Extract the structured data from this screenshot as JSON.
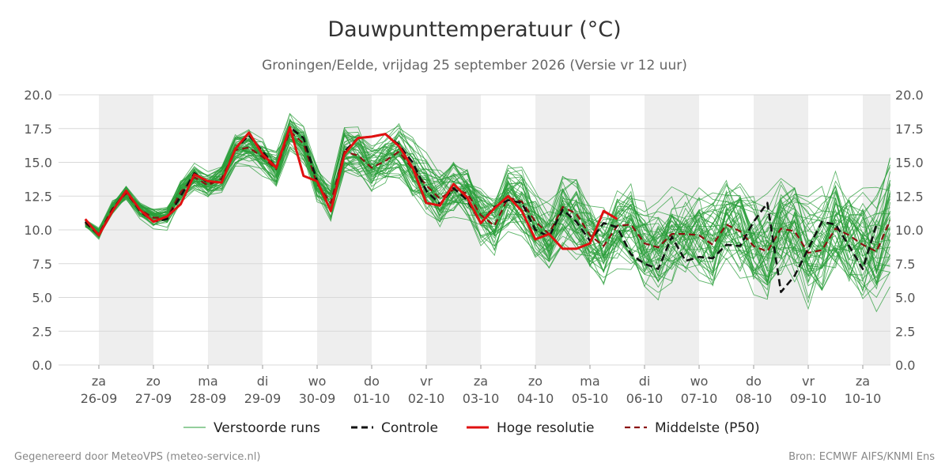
{
  "chart_data": {
    "type": "line",
    "title": "Dauwpunttemperatuur (°C)",
    "subtitle": "Groningen/Eelde, vrijdag 25 september 2026 (Versie vr 12 uur)",
    "ylim": [
      0,
      20
    ],
    "y_ticks": [
      "0.0",
      "2.5",
      "5.0",
      "7.5",
      "10.0",
      "12.5",
      "15.0",
      "17.5",
      "20.0"
    ],
    "x_range_days": [
      "25-09 18:00",
      "10-10 12:00"
    ],
    "x_ticks": [
      {
        "day": "za",
        "date": "26-09"
      },
      {
        "day": "zo",
        "date": "27-09"
      },
      {
        "day": "ma",
        "date": "28-09"
      },
      {
        "day": "di",
        "date": "29-09"
      },
      {
        "day": "wo",
        "date": "30-09"
      },
      {
        "day": "do",
        "date": "01-10"
      },
      {
        "day": "vr",
        "date": "02-10"
      },
      {
        "day": "za",
        "date": "03-10"
      },
      {
        "day": "zo",
        "date": "04-10"
      },
      {
        "day": "ma",
        "date": "05-10"
      },
      {
        "day": "di",
        "date": "06-10"
      },
      {
        "day": "wo",
        "date": "07-10"
      },
      {
        "day": "do",
        "date": "08-10"
      },
      {
        "day": "vr",
        "date": "09-10"
      },
      {
        "day": "za",
        "date": "10-10"
      }
    ],
    "grid": true,
    "legend": "bottom",
    "colors": {
      "ensemble": "#2a9d3a",
      "control": "#111111",
      "hires": "#e01010",
      "median": "#8b1010",
      "band": "#eeeeee"
    },
    "series": [
      {
        "name": "Controle",
        "style": "dashed",
        "values": [
          10.6,
          9.6,
          11.5,
          12.9,
          11.4,
          10.6,
          10.8,
          12.5,
          14.2,
          13.5,
          13.6,
          16.0,
          17.0,
          15.8,
          14.6,
          17.6,
          16.8,
          13.6,
          11.4,
          15.8,
          16.8,
          16.9,
          17.1,
          16.3,
          15.0,
          12.9,
          11.9,
          13.1,
          12.2,
          10.5,
          11.7,
          12.2,
          12.0,
          10.0,
          9.5,
          11.5,
          10.6,
          9.2,
          10.5,
          10.2,
          8.2,
          7.5,
          7.1,
          9.5,
          7.7,
          8.0,
          7.9,
          8.9,
          8.8,
          10.6,
          12.0,
          5.4,
          6.6,
          8.6,
          10.6,
          10.4,
          8.8,
          7.1,
          10.4
        ]
      },
      {
        "name": "Hoge resolutie",
        "style": "solid",
        "values": [
          10.8,
          9.6,
          11.4,
          12.9,
          11.5,
          10.6,
          11.0,
          11.9,
          14.1,
          13.6,
          13.5,
          16.0,
          17.2,
          15.6,
          14.6,
          17.6,
          14.0,
          13.6,
          11.4,
          15.6,
          16.8,
          16.9,
          17.1,
          16.2,
          14.6,
          12.0,
          11.8,
          13.4,
          12.4,
          10.5,
          11.6,
          12.5,
          11.4,
          9.3,
          9.7,
          8.6,
          8.6,
          9.0,
          11.4,
          10.8
        ]
      },
      {
        "name": "Middelste (P50)",
        "style": "dashed",
        "values": [
          10.5,
          9.7,
          11.6,
          12.7,
          11.5,
          10.9,
          10.9,
          12.8,
          13.9,
          13.3,
          13.8,
          15.9,
          16.1,
          15.4,
          14.5,
          17.3,
          16.4,
          13.4,
          12.0,
          15.8,
          15.5,
          14.6,
          15.1,
          15.8,
          14.5,
          13.3,
          12.3,
          13.0,
          12.7,
          11.1,
          10.3,
          12.4,
          12.1,
          10.6,
          9.7,
          11.7,
          11.2,
          9.6,
          8.8,
          10.3,
          10.4,
          9.0,
          8.7,
          9.7,
          9.7,
          9.6,
          8.9,
          10.4,
          9.9,
          8.8,
          8.4,
          10.1,
          9.9,
          8.3,
          8.5,
          10.1,
          9.6,
          8.9,
          8.4,
          10.7
        ]
      }
    ],
    "ensemble_count": 50
  },
  "legend": {
    "ensemble_label": "Verstoorde runs",
    "control_label": "Controle",
    "hires_label": "Hoge resolutie",
    "median_label": "Middelste (P50)"
  },
  "footer": {
    "left": "Gegenereerd door MeteoVPS (meteo-service.nl)",
    "right": "Bron: ECMWF AIFS/KNMI Ens"
  }
}
